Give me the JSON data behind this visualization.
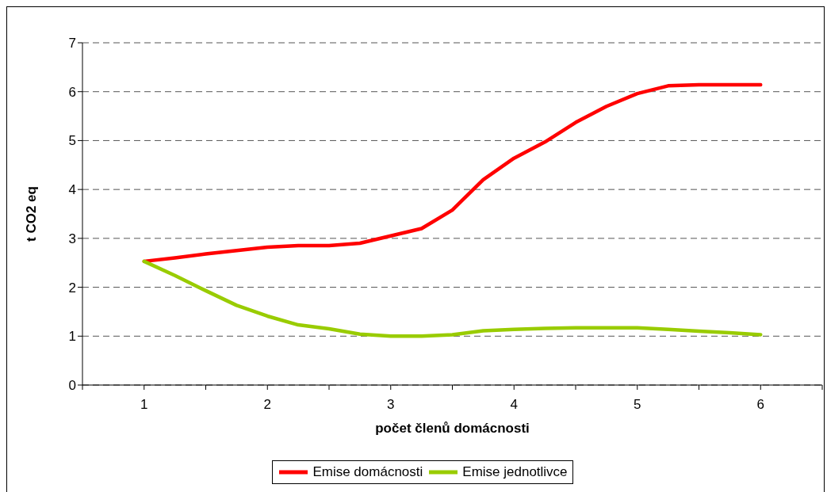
{
  "chart_data": {
    "type": "line",
    "xlabel": "počet členů domácnosti",
    "ylabel": "t CO2 eq",
    "x": [
      1,
      1.25,
      1.5,
      1.75,
      2,
      2.25,
      2.5,
      2.75,
      3,
      3.25,
      3.5,
      3.75,
      4,
      4.25,
      4.5,
      4.75,
      5,
      5.25,
      5.5,
      5.75,
      6
    ],
    "series": [
      {
        "name": "Emise domácnosti",
        "color": "#ff0000",
        "values": [
          2.53,
          2.6,
          2.68,
          2.75,
          2.82,
          2.85,
          2.85,
          2.9,
          3.05,
          3.2,
          3.58,
          4.2,
          4.64,
          4.97,
          5.37,
          5.7,
          5.96,
          6.12,
          6.14,
          6.14,
          6.14
        ]
      },
      {
        "name": "Emise jednotlivce",
        "color": "#99cc00",
        "values": [
          2.53,
          2.24,
          1.93,
          1.63,
          1.41,
          1.23,
          1.15,
          1.04,
          1.0,
          1.0,
          1.03,
          1.11,
          1.14,
          1.16,
          1.17,
          1.17,
          1.17,
          1.14,
          1.1,
          1.07,
          1.03
        ]
      }
    ],
    "xlim": [
      0.5,
      6.5
    ],
    "xticks": [
      {
        "value": 0.5,
        "label": null
      },
      1,
      {
        "value": 1.5,
        "label": null
      },
      2,
      {
        "value": 2.5,
        "label": null
      },
      3,
      {
        "value": 3.5,
        "label": null
      },
      4,
      {
        "value": 4.5,
        "label": null
      },
      5,
      {
        "value": 5.5,
        "label": null
      },
      6,
      {
        "value": 6.5,
        "label": null
      }
    ],
    "ylim": [
      0,
      7
    ],
    "yticks": [
      0,
      1,
      2,
      3,
      4,
      5,
      6,
      7
    ],
    "grid": "y",
    "legend": "bottom",
    "marker": "none",
    "line_style": "solid"
  }
}
